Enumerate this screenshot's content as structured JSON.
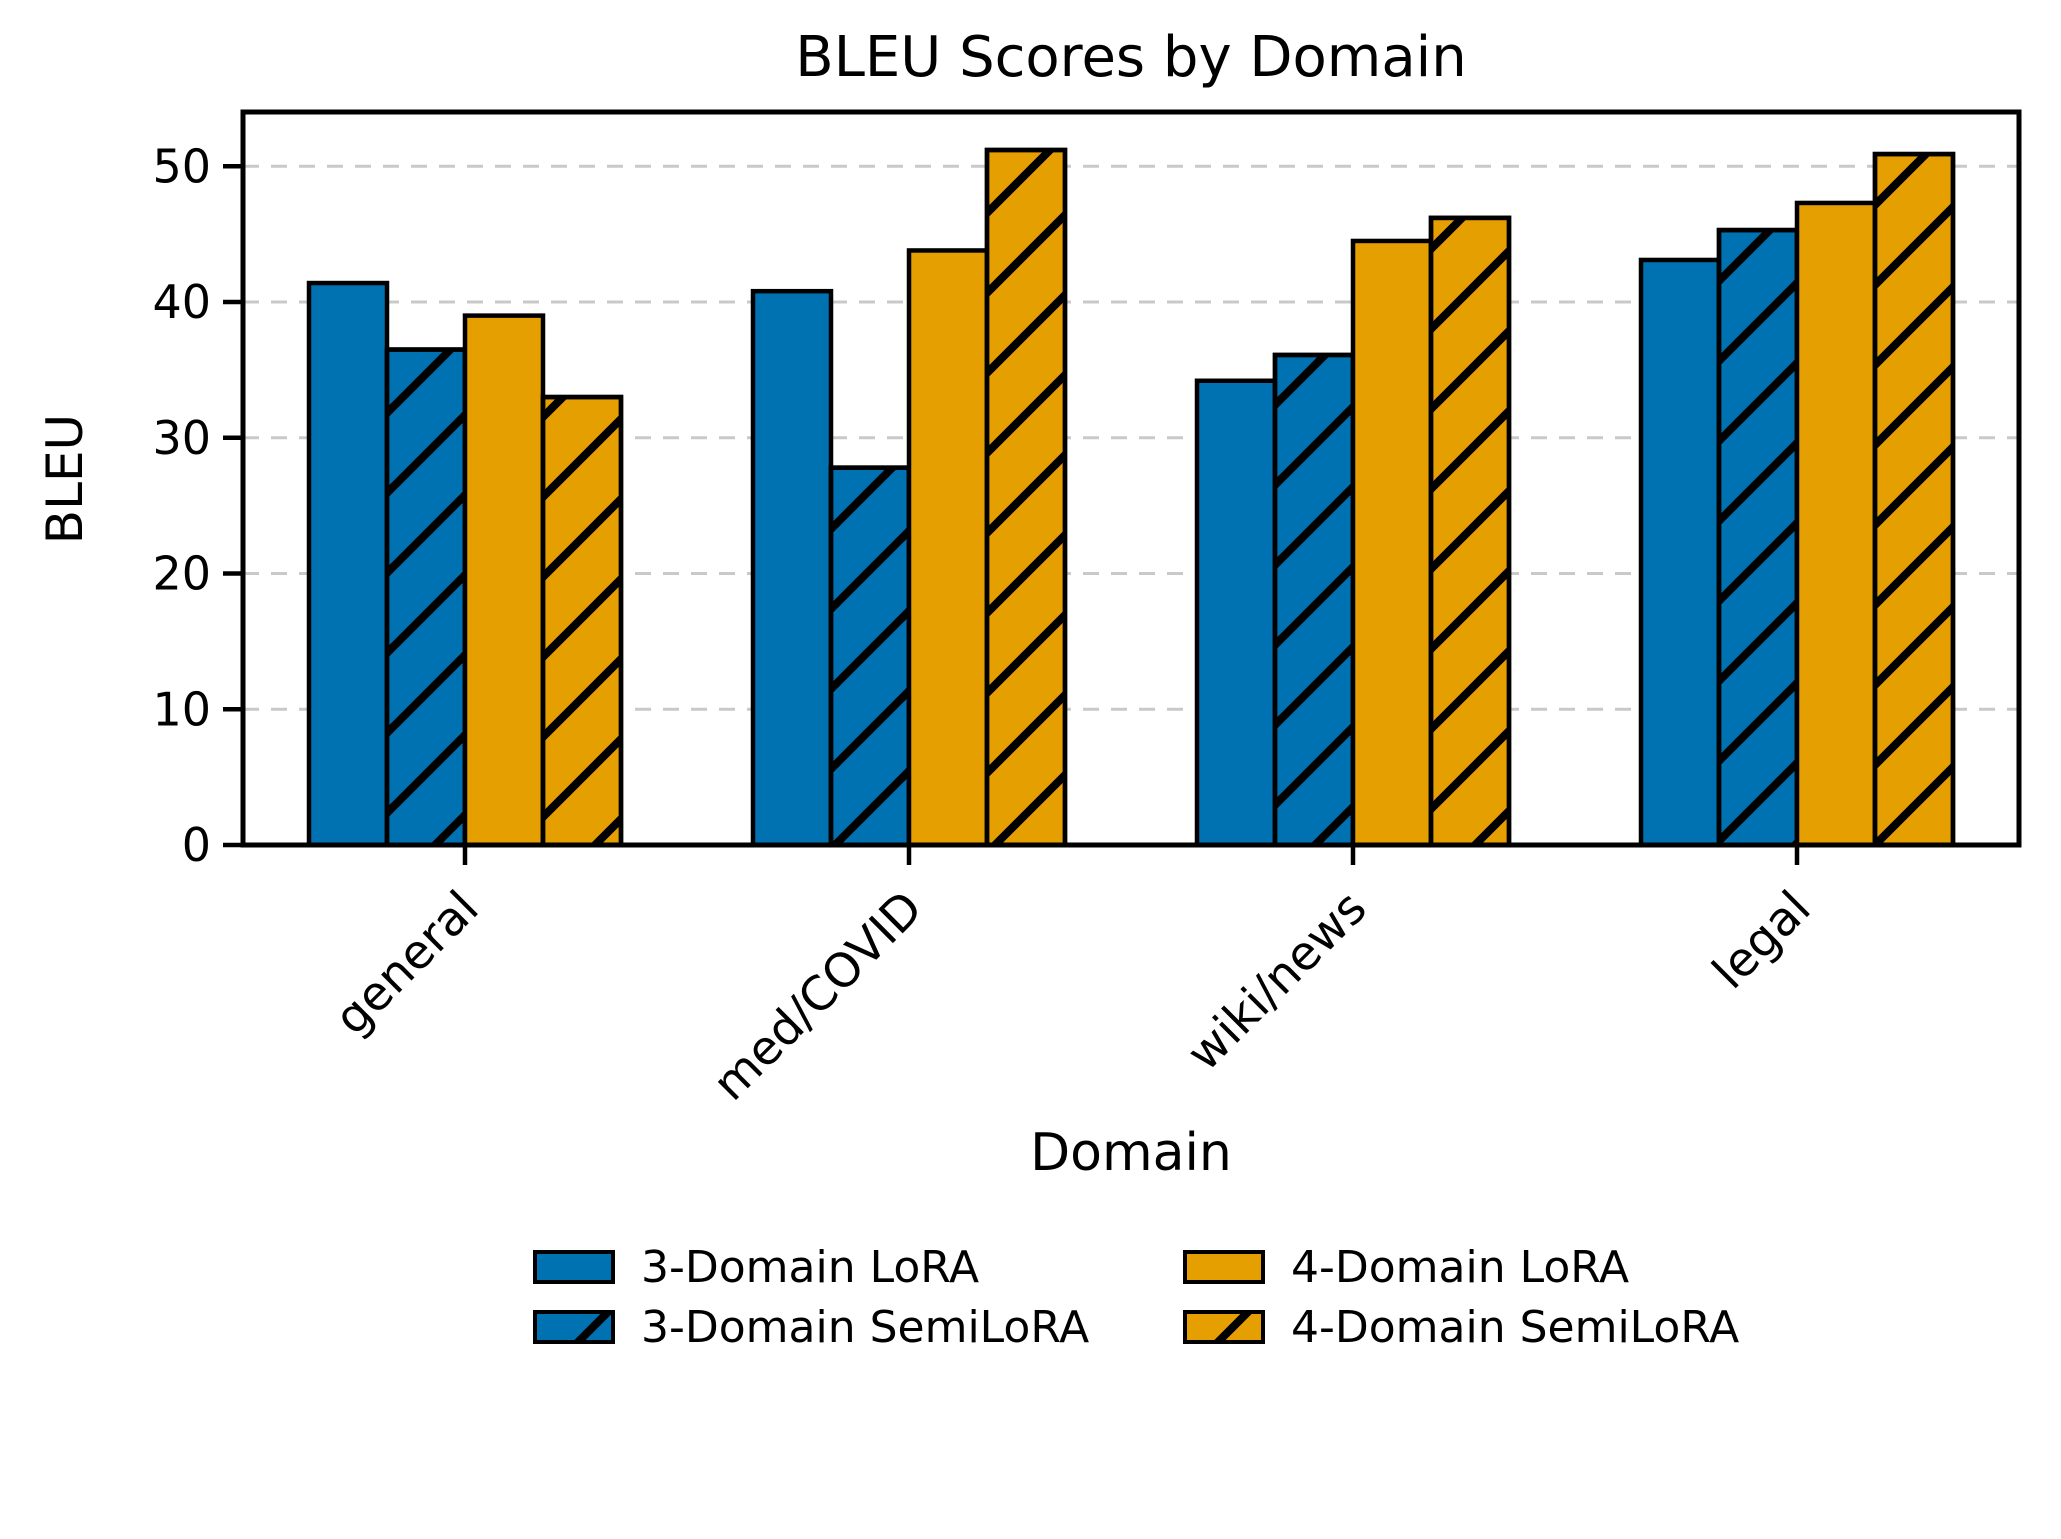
{
  "figure": {
    "background": "#ffffff"
  },
  "chart_data": {
    "type": "bar",
    "title": "BLEU Scores by Domain",
    "xlabel": "Domain",
    "ylabel": "BLEU",
    "categories": [
      "general",
      "med/COVID",
      "wiki/news",
      "legal"
    ],
    "series": [
      {
        "name": "3-Domain LoRA",
        "color": "#0072B2",
        "hatch": false,
        "values": [
          41.4,
          40.8,
          34.2,
          43.1
        ]
      },
      {
        "name": "3-Domain SemiLoRA",
        "color": "#0072B2",
        "hatch": true,
        "values": [
          36.5,
          27.8,
          36.1,
          45.3
        ]
      },
      {
        "name": "4-Domain LoRA",
        "color": "#E69F00",
        "hatch": false,
        "values": [
          39.0,
          43.8,
          44.5,
          47.3
        ]
      },
      {
        "name": "4-Domain SemiLoRA",
        "color": "#E69F00",
        "hatch": true,
        "values": [
          33.0,
          51.2,
          46.2,
          50.9
        ]
      }
    ],
    "yticks": [
      0,
      10,
      20,
      30,
      40,
      50
    ],
    "ylim": [
      0,
      54
    ],
    "grid": {
      "show": true,
      "color": "#c9c9c9",
      "style": "dashed"
    },
    "edge_color": "#000000",
    "hatch_pattern": "diagonal-slash",
    "legend": {
      "position": "bottom",
      "columns": 2
    }
  }
}
